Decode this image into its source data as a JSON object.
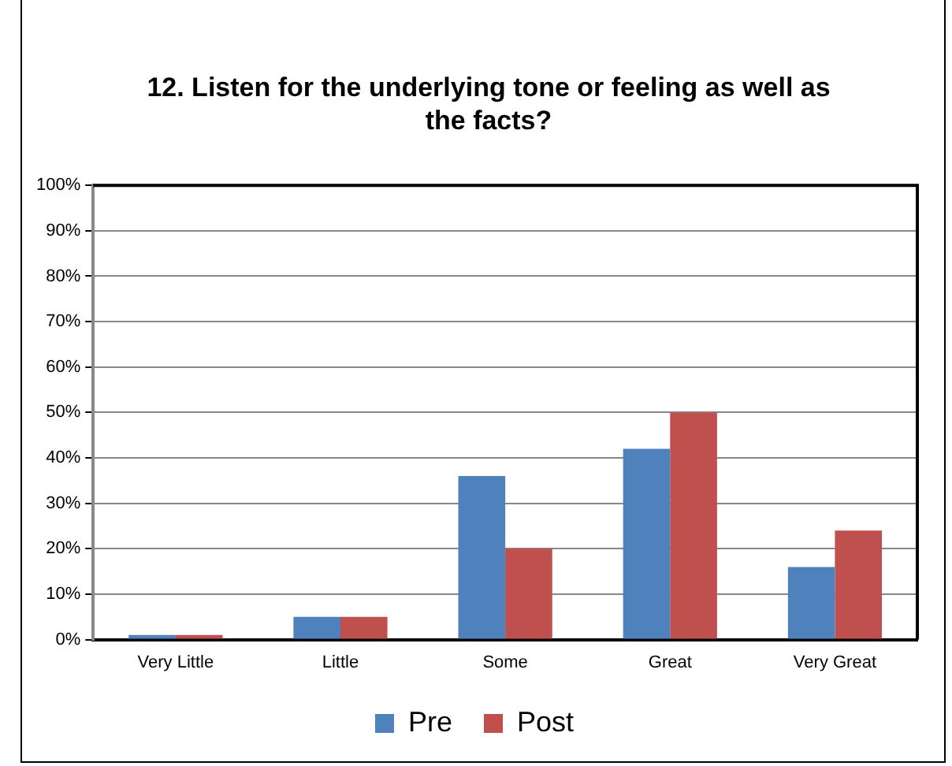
{
  "chart_data": {
    "type": "bar",
    "title": "12. Listen for the underlying tone or feeling as well as the facts?",
    "categories": [
      "Very Little",
      "Little",
      "Some",
      "Great",
      "Very Great"
    ],
    "series": [
      {
        "name": "Pre",
        "color": "#4f81bd",
        "values": [
          1,
          5,
          36,
          42,
          16
        ]
      },
      {
        "name": "Post",
        "color": "#c0504d",
        "values": [
          1,
          5,
          20,
          50,
          24
        ]
      }
    ],
    "ylim": [
      0,
      100
    ],
    "yticks": [
      {
        "value": 0,
        "label": "0%"
      },
      {
        "value": 10,
        "label": "10%"
      },
      {
        "value": 20,
        "label": "20%"
      },
      {
        "value": 30,
        "label": "30%"
      },
      {
        "value": 40,
        "label": "40%"
      },
      {
        "value": 50,
        "label": "50%"
      },
      {
        "value": 60,
        "label": "60%"
      },
      {
        "value": 70,
        "label": "70%"
      },
      {
        "value": 80,
        "label": "80%"
      },
      {
        "value": 90,
        "label": "90%"
      },
      {
        "value": 100,
        "label": "100%"
      }
    ],
    "grid": "y",
    "legend": "bottom"
  }
}
